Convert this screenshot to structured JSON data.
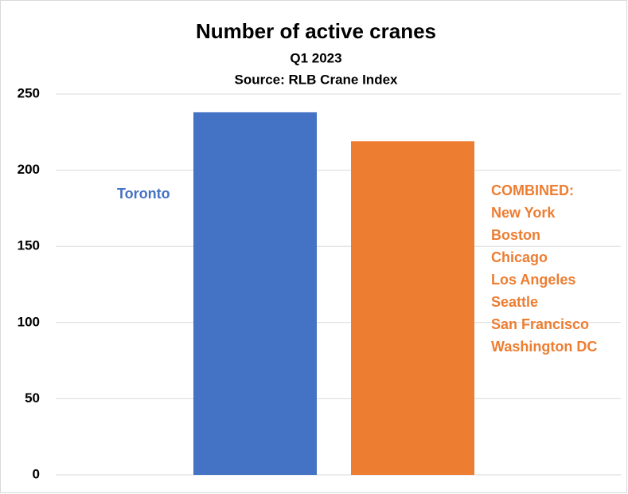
{
  "chart_data": {
    "type": "bar",
    "title": "Number of active cranes",
    "subtitle": [
      "Q1 2023",
      "Source: RLB Crane Index"
    ],
    "categories": [
      null,
      null
    ],
    "values": [
      238,
      219
    ],
    "colors": [
      "#4472c4",
      "#ed7d31"
    ],
    "ylim": [
      0,
      250
    ],
    "yticks": [
      0,
      50,
      100,
      150,
      200,
      250
    ],
    "grid": true,
    "annotations": [
      {
        "lines": [
          "Toronto"
        ],
        "color": "#4472c4"
      },
      {
        "lines": [
          "COMBINED:",
          "New York",
          "Boston",
          "Chicago",
          "Los Angeles",
          "Seattle",
          "San Francisco",
          "Washington DC"
        ],
        "color": "#ed7d31"
      }
    ]
  }
}
